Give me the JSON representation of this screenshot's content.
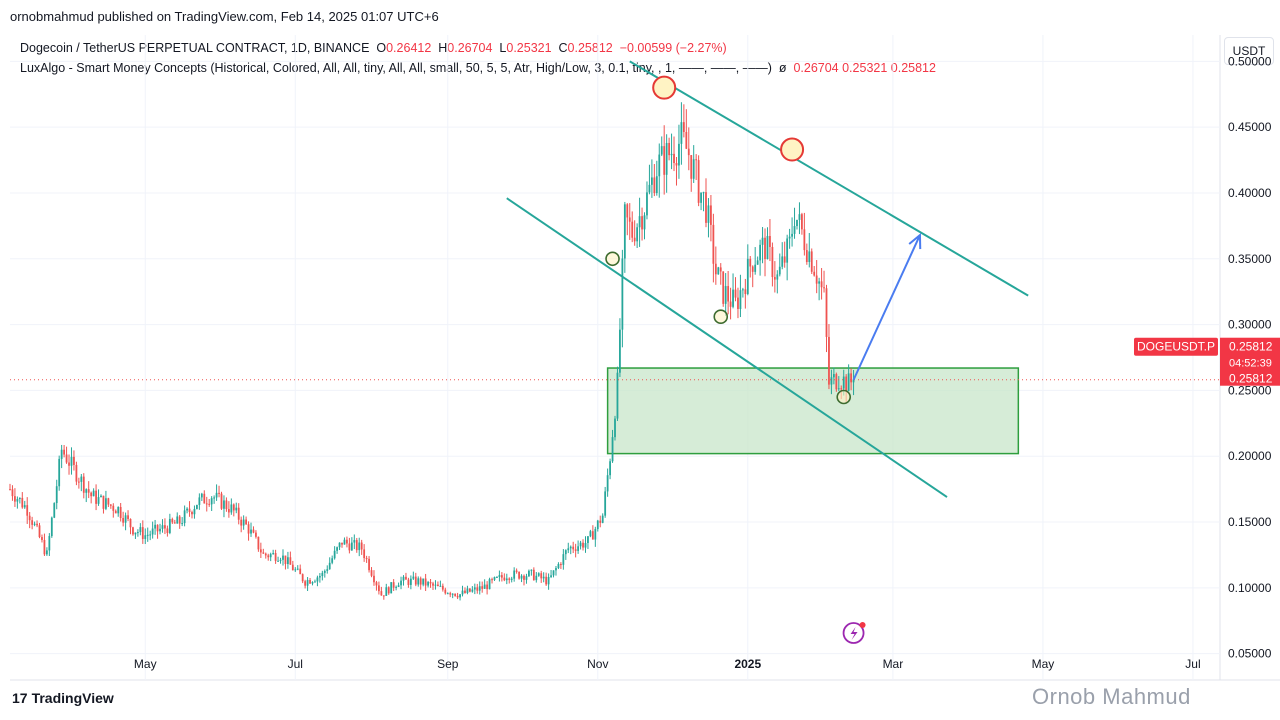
{
  "header": {
    "publisher": "ornobmahmud published on TradingView.com, Feb 14, 2025 01:07 UTC+6"
  },
  "legend": {
    "symbol": "Dogecoin / TetherUS PERPETUAL CONTRACT, 1D, BINANCE",
    "o_label": "O",
    "o_value": "0.26412",
    "h_label": "H",
    "h_value": "0.26704",
    "l_label": "L",
    "l_value": "0.25321",
    "c_label": "C",
    "c_value": "0.25812",
    "change": "−0.00599 (−2.27%)",
    "indicator": "LuxAlgo - Smart Money Concepts (Historical, Colored, All, All, tiny, All, All, small, 50, 5, 5, Atr, High/Low, 3, 0.1, tiny, , 1, ——, ——, ——)",
    "indicator_symbol": "ø",
    "indicator_values": "0.26704  0.25321  0.25812"
  },
  "price_scale": {
    "currency": "USDT",
    "ticker_badge": "DOGEUSDT.P",
    "last_price": "0.25812",
    "countdown": "04:52:39",
    "last_price_2": "0.25812"
  },
  "footer": {
    "logo_mark": "17",
    "logo_text": "TradingView",
    "watermark": "Ornob Mahmud"
  },
  "colors": {
    "up": "#26a69a",
    "down": "#ef5350",
    "channel": "#26a69a",
    "zone_fill": "#c8e6c9",
    "zone_border": "#2e9e3e",
    "arrow": "#4a7cf0",
    "badge": "#f23645"
  },
  "chart_data": {
    "type": "candlestick",
    "y_scale": "linear",
    "ylim": [
      0.03,
      0.52
    ],
    "y_ticks": [
      "0.50000",
      "0.45000",
      "0.40000",
      "0.35000",
      "0.30000",
      "0.25000",
      "0.20000",
      "0.15000",
      "0.10000",
      "0.05000"
    ],
    "y_tick_values": [
      0.5,
      0.45,
      0.4,
      0.35,
      0.3,
      0.25,
      0.2,
      0.15,
      0.1,
      0.05
    ],
    "x_range": [
      "2024-03-07",
      "2025-07-12"
    ],
    "x_ticks": [
      {
        "label": "May",
        "date": "2024-05-01"
      },
      {
        "label": "Jul",
        "date": "2024-07-01"
      },
      {
        "label": "Sep",
        "date": "2024-09-01"
      },
      {
        "label": "Nov",
        "date": "2024-11-01"
      },
      {
        "label": "2025",
        "date": "2025-01-01"
      },
      {
        "label": "Mar",
        "date": "2025-03-01"
      },
      {
        "label": "May",
        "date": "2025-05-01"
      },
      {
        "label": "Jul",
        "date": "2025-07-01"
      }
    ],
    "last_price": 0.25812,
    "price_path": [
      [
        "2024-03-07",
        0.175
      ],
      [
        "2024-03-14",
        0.16
      ],
      [
        "2024-03-22",
        0.125
      ],
      [
        "2024-03-28",
        0.205
      ],
      [
        "2024-04-02",
        0.19
      ],
      [
        "2024-04-09",
        0.17
      ],
      [
        "2024-04-14",
        0.165
      ],
      [
        "2024-04-20",
        0.16
      ],
      [
        "2024-04-26",
        0.145
      ],
      [
        "2024-05-01",
        0.14
      ],
      [
        "2024-05-08",
        0.145
      ],
      [
        "2024-05-15",
        0.15
      ],
      [
        "2024-05-22",
        0.165
      ],
      [
        "2024-05-28",
        0.17
      ],
      [
        "2024-06-05",
        0.16
      ],
      [
        "2024-06-12",
        0.145
      ],
      [
        "2024-06-18",
        0.125
      ],
      [
        "2024-06-25",
        0.125
      ],
      [
        "2024-07-05",
        0.105
      ],
      [
        "2024-07-12",
        0.11
      ],
      [
        "2024-07-20",
        0.135
      ],
      [
        "2024-07-28",
        0.13
      ],
      [
        "2024-08-05",
        0.095
      ],
      [
        "2024-08-12",
        0.105
      ],
      [
        "2024-08-20",
        0.105
      ],
      [
        "2024-08-28",
        0.1
      ],
      [
        "2024-09-06",
        0.095
      ],
      [
        "2024-09-15",
        0.1
      ],
      [
        "2024-09-25",
        0.11
      ],
      [
        "2024-10-05",
        0.11
      ],
      [
        "2024-10-12",
        0.105
      ],
      [
        "2024-10-20",
        0.13
      ],
      [
        "2024-10-28",
        0.135
      ],
      [
        "2024-11-03",
        0.155
      ],
      [
        "2024-11-06",
        0.2
      ],
      [
        "2024-11-09",
        0.255
      ],
      [
        "2024-11-12",
        0.38
      ],
      [
        "2024-11-15",
        0.37
      ],
      [
        "2024-11-20",
        0.39
      ],
      [
        "2024-11-25",
        0.42
      ],
      [
        "2024-11-30",
        0.43
      ],
      [
        "2024-12-05",
        0.44
      ],
      [
        "2024-12-08",
        0.43
      ],
      [
        "2024-12-12",
        0.405
      ],
      [
        "2024-12-15",
        0.39
      ],
      [
        "2024-12-19",
        0.34
      ],
      [
        "2024-12-22",
        0.325
      ],
      [
        "2024-12-27",
        0.315
      ],
      [
        "2025-01-03",
        0.35
      ],
      [
        "2025-01-08",
        0.36
      ],
      [
        "2025-01-13",
        0.335
      ],
      [
        "2025-01-18",
        0.36
      ],
      [
        "2025-01-20",
        0.385
      ],
      [
        "2025-01-23",
        0.37
      ],
      [
        "2025-01-28",
        0.345
      ],
      [
        "2025-02-01",
        0.32
      ],
      [
        "2025-02-03",
        0.255
      ],
      [
        "2025-02-07",
        0.26
      ],
      [
        "2025-02-11",
        0.255
      ],
      [
        "2025-02-13",
        0.258
      ]
    ],
    "channel_upper": {
      "from": [
        "2024-11-14",
        0.5
      ],
      "to": [
        "2025-04-25",
        0.322
      ]
    },
    "channel_lower": {
      "from": [
        "2024-09-25",
        0.396
      ],
      "to": [
        "2025-03-23",
        0.169
      ]
    },
    "demand_zone": {
      "from": "2024-11-05",
      "to": "2025-04-21",
      "top": 0.267,
      "bottom": 0.202
    },
    "projection_arrow": {
      "from": [
        "2025-02-13",
        0.258
      ],
      "to": [
        "2025-03-12",
        0.368
      ]
    },
    "touch_points_major": [
      [
        "2024-11-28",
        0.48
      ],
      [
        "2025-01-19",
        0.433
      ]
    ],
    "touch_points_minor": [
      [
        "2024-11-07",
        0.35
      ],
      [
        "2024-12-21",
        0.306
      ],
      [
        "2025-02-09",
        0.245
      ]
    ]
  }
}
